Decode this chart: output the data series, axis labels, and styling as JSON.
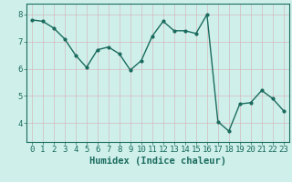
{
  "x": [
    0,
    1,
    2,
    3,
    4,
    5,
    6,
    7,
    8,
    9,
    10,
    11,
    12,
    13,
    14,
    15,
    16,
    17,
    18,
    19,
    20,
    21,
    22,
    23
  ],
  "y": [
    7.8,
    7.75,
    7.5,
    7.1,
    6.5,
    6.05,
    6.7,
    6.8,
    6.55,
    5.95,
    6.3,
    7.2,
    7.75,
    7.4,
    7.4,
    7.3,
    8.0,
    4.05,
    3.7,
    4.7,
    4.75,
    5.2,
    4.9,
    4.45
  ],
  "line_color": "#1a6b5e",
  "marker": "o",
  "marker_size": 2.0,
  "line_width": 1.0,
  "bg_color": "#cff0ea",
  "grid_color_minor": "#e8f8f5",
  "grid_color_major": "#c0ddd8",
  "xlabel": "Humidex (Indice chaleur)",
  "xlabel_fontsize": 7.5,
  "tick_color": "#1a6b5e",
  "tick_fontsize": 6.5,
  "ylim": [
    3.3,
    8.4
  ],
  "xlim": [
    -0.5,
    23.5
  ],
  "yticks": [
    4,
    5,
    6,
    7,
    8
  ],
  "xticks": [
    0,
    1,
    2,
    3,
    4,
    5,
    6,
    7,
    8,
    9,
    10,
    11,
    12,
    13,
    14,
    15,
    16,
    17,
    18,
    19,
    20,
    21,
    22,
    23
  ]
}
